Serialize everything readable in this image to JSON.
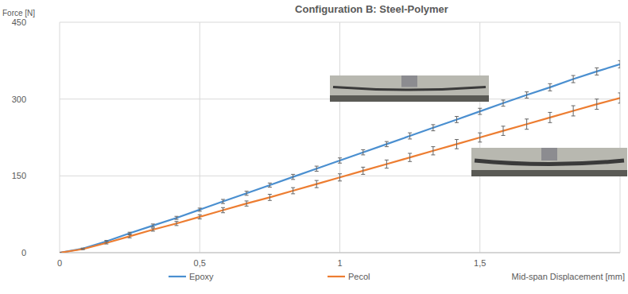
{
  "chart_data": {
    "type": "line",
    "title": "Configuration B: Steel-Polymer",
    "x_label": "Mid-span Displacement [mm]",
    "y_label": "Force [N]",
    "x": [
      0,
      0.083,
      0.167,
      0.25,
      0.333,
      0.417,
      0.5,
      0.583,
      0.667,
      0.75,
      0.833,
      0.917,
      1.0,
      1.083,
      1.167,
      1.25,
      1.333,
      1.417,
      1.5,
      1.583,
      1.667,
      1.75,
      1.833,
      1.917,
      2.0
    ],
    "series": [
      {
        "name": "Epoxy",
        "color": "#4a8fd0",
        "values": [
          0,
          8,
          22,
          38,
          53,
          68,
          84,
          100,
          116,
          132,
          148,
          164,
          180,
          196,
          212,
          228,
          244,
          260,
          276,
          292,
          308,
          323,
          339,
          354,
          368
        ],
        "errors": [
          0,
          1,
          2,
          2,
          3,
          3,
          3,
          4,
          4,
          4,
          5,
          5,
          5,
          5,
          5,
          6,
          6,
          6,
          6,
          6,
          6,
          7,
          7,
          7,
          7
        ]
      },
      {
        "name": "Pecol",
        "color": "#ed7d31",
        "values": [
          0,
          7,
          19,
          32,
          45,
          57,
          70,
          83,
          96,
          108,
          121,
          134,
          147,
          160,
          173,
          186,
          199,
          212,
          225,
          238,
          251,
          264,
          277,
          290,
          302
        ],
        "errors": [
          0,
          1,
          2,
          3,
          3,
          4,
          4,
          5,
          5,
          6,
          6,
          7,
          7,
          7,
          8,
          8,
          8,
          9,
          9,
          9,
          10,
          10,
          10,
          10,
          10
        ]
      }
    ],
    "xlim": [
      0,
      2
    ],
    "xticks": [
      0,
      {
        "value": 0.5,
        "label": "0,5"
      },
      1,
      {
        "value": 1.5,
        "label": "1,5"
      }
    ],
    "ylim": [
      0,
      450
    ],
    "yticks": [
      0,
      150,
      300,
      450
    ],
    "grid": true,
    "legend": "bottom"
  }
}
